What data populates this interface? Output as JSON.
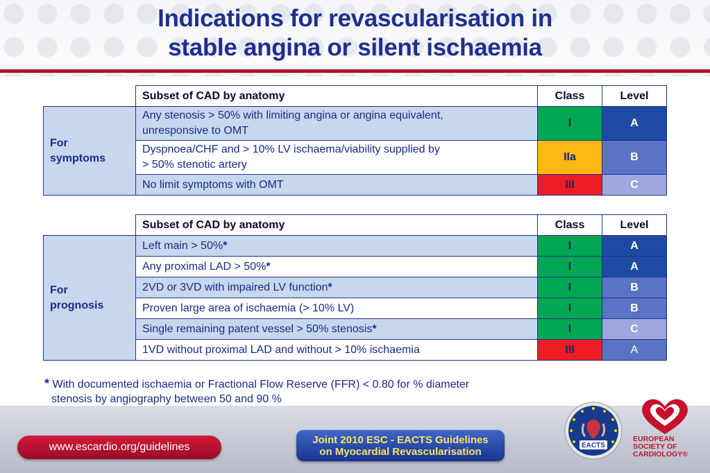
{
  "title": {
    "line1": "Indications for revascularisation in",
    "line2": "stable angina or silent ischaemia"
  },
  "tables": [
    {
      "group": {
        "line1": "For",
        "line2": "symptoms"
      },
      "header": {
        "subset": "Subset of CAD by anatomy",
        "class": "Class",
        "level": "Level"
      },
      "rows": [
        {
          "desc_line1": "Any stenosis > 50% with limiting angina or angina equivalent,",
          "desc_line2": "unresponsive to OMT",
          "class": "I",
          "level": "A"
        },
        {
          "desc_line1": "Dyspnoea/CHF and > 10% LV ischaema/viability supplied by",
          "desc_line2": "> 50% stenotic artery",
          "class": "IIa",
          "level": "B"
        },
        {
          "desc_line1": "No limit symptoms with OMT",
          "class": "III",
          "level": "C"
        }
      ]
    },
    {
      "group": {
        "line1": "For",
        "line2": "prognosis"
      },
      "header": {
        "subset": "Subset of CAD by anatomy",
        "class": "Class",
        "level": "Level"
      },
      "rows": [
        {
          "desc": "Left main > 50%",
          "star": "*",
          "class": "I",
          "level": "A"
        },
        {
          "desc": "Any proximal LAD > 50%",
          "star": "*",
          "class": "I",
          "level": "A"
        },
        {
          "desc": "2VD or 3VD with impaired LV function",
          "star": "*",
          "class": "I",
          "level": "B"
        },
        {
          "desc": "Proven large area of ischaemia (> 10% LV)",
          "class": "I",
          "level": "B"
        },
        {
          "desc": "Single remaining patent vessel > 50% stenosis",
          "star": "*",
          "class": "I",
          "level": "C"
        },
        {
          "desc": "1VD without proximal LAD and without > 10% ischaemia",
          "class": "III",
          "level": "A"
        }
      ]
    }
  ],
  "footnote": {
    "star": "*",
    "line1": "With documented ischaemia or Fractional Flow Reserve (FFR) < 0.80 for % diameter",
    "line2": "stenosis by angiography between 50 and 90 %"
  },
  "footer": {
    "url": "www.escardio.org/guidelines",
    "joint_line1": "Joint 2010 ESC - EACTS Guidelines",
    "joint_line2": "on Myocardial Revascularisation",
    "eacts_logo_text": "EACTS",
    "esc_line1": "EUROPEAN",
    "esc_line2": "SOCIETY OF",
    "esc_line3": "CARDIOLOGY®"
  },
  "colors": {
    "title": "#1f2f8f",
    "accent_red": "#b5122b",
    "class_I": "#00a650",
    "class_IIa": "#fdb813",
    "class_III": "#ed1c24",
    "level_A": "#1e4aa3",
    "level_B": "#5a74c4",
    "level_C": "#9ea8de"
  }
}
